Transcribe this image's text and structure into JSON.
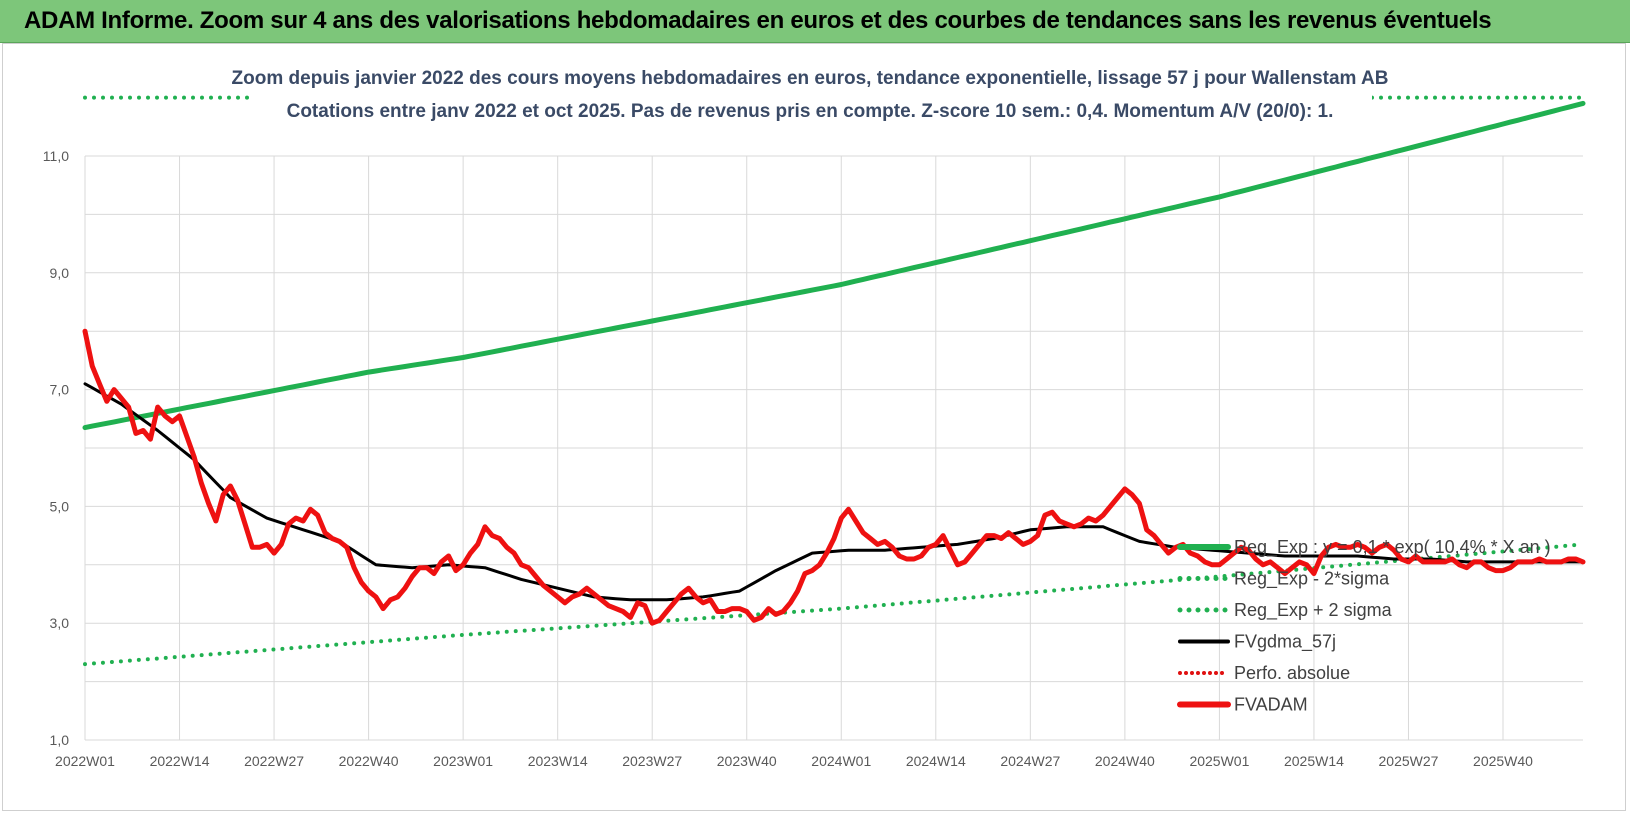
{
  "header": {
    "title": "ADAM Informe. Zoom sur 4 ans des valorisations hebdomadaires en euros et des courbes de tendances sans les revenus éventuels",
    "background": "#7dc67a"
  },
  "chart_data": {
    "type": "line",
    "title_lines": [
      "Zoom depuis janvier 2022 des cours moyens hebdomadaires en euros, tendance exponentielle, lissage 57 j pour Wallenstam AB",
      "Cotations entre janv 2022 et oct 2025. Pas de revenus pris en compte. Z-score 10 sem.: 0,4. Momentum A/V (20/0): 1."
    ],
    "xlabel": "",
    "ylabel": "",
    "ylim": [
      1.0,
      12.0
    ],
    "y_ticks": [
      "1,0",
      "3,0",
      "5,0",
      "7,0",
      "9,0",
      "11,0"
    ],
    "x_ticks": [
      "2022W01",
      "2022W14",
      "2022W27",
      "2022W40",
      "2023W01",
      "2023W14",
      "2023W27",
      "2023W40",
      "2024W01",
      "2024W14",
      "2024W27",
      "2024W40",
      "2025W01",
      "2025W14",
      "2025W27",
      "2025W40"
    ],
    "grid": true,
    "legend_position": "bottom-right",
    "series": [
      {
        "name": "Reg_Exp : y = 0,1 * exp( 10,4% * X  an )",
        "color": "#20b050",
        "style": "solid",
        "anchors": [
          [
            0,
            6.35
          ],
          [
            39,
            7.3
          ],
          [
            52,
            7.55
          ],
          [
            104,
            8.8
          ],
          [
            156,
            10.3
          ],
          [
            206,
            11.9
          ]
        ]
      },
      {
        "name": "Reg_Exp - 2*sigma",
        "color": "#20b050",
        "style": "dotted",
        "anchors": [
          [
            0,
            2.3
          ],
          [
            52,
            2.8
          ],
          [
            104,
            3.25
          ],
          [
            156,
            3.8
          ],
          [
            206,
            4.35
          ]
        ]
      },
      {
        "name": "Reg_Exp + 2 sigma",
        "color": "#20b050",
        "style": "dotted",
        "anchors": [
          [
            0,
            12.0
          ],
          [
            206,
            12.0
          ]
        ]
      },
      {
        "name": "FVgdma_57j",
        "color": "#000000",
        "style": "solid",
        "anchors": [
          [
            0,
            7.1
          ],
          [
            5,
            6.75
          ],
          [
            10,
            6.3
          ],
          [
            15,
            5.8
          ],
          [
            20,
            5.15
          ],
          [
            25,
            4.8
          ],
          [
            30,
            4.6
          ],
          [
            35,
            4.4
          ],
          [
            40,
            4.0
          ],
          [
            45,
            3.95
          ],
          [
            50,
            4.0
          ],
          [
            55,
            3.95
          ],
          [
            60,
            3.75
          ],
          [
            65,
            3.6
          ],
          [
            70,
            3.45
          ],
          [
            75,
            3.4
          ],
          [
            80,
            3.4
          ],
          [
            85,
            3.45
          ],
          [
            90,
            3.55
          ],
          [
            95,
            3.9
          ],
          [
            100,
            4.2
          ],
          [
            105,
            4.25
          ],
          [
            110,
            4.25
          ],
          [
            115,
            4.3
          ],
          [
            120,
            4.35
          ],
          [
            125,
            4.45
          ],
          [
            130,
            4.6
          ],
          [
            135,
            4.65
          ],
          [
            140,
            4.65
          ],
          [
            145,
            4.4
          ],
          [
            150,
            4.3
          ],
          [
            155,
            4.25
          ],
          [
            160,
            4.2
          ],
          [
            165,
            4.15
          ],
          [
            170,
            4.15
          ],
          [
            175,
            4.15
          ],
          [
            180,
            4.1
          ],
          [
            185,
            4.1
          ],
          [
            190,
            4.05
          ],
          [
            195,
            4.05
          ],
          [
            200,
            4.05
          ],
          [
            206,
            4.05
          ]
        ]
      },
      {
        "name": "Perfo. absolue",
        "color": "#e01010",
        "style": "dotted",
        "anchors": []
      },
      {
        "name": "FVADAM",
        "color": "#ee1111",
        "style": "solid",
        "anchors": [
          [
            0,
            8.0
          ],
          [
            1,
            7.4
          ],
          [
            2,
            7.1
          ],
          [
            3,
            6.8
          ],
          [
            4,
            7.0
          ],
          [
            5,
            6.85
          ],
          [
            6,
            6.7
          ],
          [
            7,
            6.25
          ],
          [
            8,
            6.3
          ],
          [
            9,
            6.15
          ],
          [
            10,
            6.7
          ],
          [
            11,
            6.55
          ],
          [
            12,
            6.45
          ],
          [
            13,
            6.55
          ],
          [
            14,
            6.2
          ],
          [
            15,
            5.85
          ],
          [
            16,
            5.4
          ],
          [
            17,
            5.05
          ],
          [
            18,
            4.75
          ],
          [
            19,
            5.2
          ],
          [
            20,
            5.35
          ],
          [
            21,
            5.1
          ],
          [
            22,
            4.7
          ],
          [
            23,
            4.3
          ],
          [
            24,
            4.3
          ],
          [
            25,
            4.35
          ],
          [
            26,
            4.2
          ],
          [
            27,
            4.35
          ],
          [
            28,
            4.7
          ],
          [
            29,
            4.8
          ],
          [
            30,
            4.75
          ],
          [
            31,
            4.95
          ],
          [
            32,
            4.85
          ],
          [
            33,
            4.55
          ],
          [
            34,
            4.45
          ],
          [
            35,
            4.4
          ],
          [
            36,
            4.3
          ],
          [
            37,
            3.95
          ],
          [
            38,
            3.7
          ],
          [
            39,
            3.55
          ],
          [
            40,
            3.45
          ],
          [
            41,
            3.25
          ],
          [
            42,
            3.4
          ],
          [
            43,
            3.45
          ],
          [
            44,
            3.6
          ],
          [
            45,
            3.8
          ],
          [
            46,
            3.95
          ],
          [
            47,
            3.95
          ],
          [
            48,
            3.85
          ],
          [
            49,
            4.05
          ],
          [
            50,
            4.15
          ],
          [
            51,
            3.9
          ],
          [
            52,
            4.0
          ],
          [
            53,
            4.2
          ],
          [
            54,
            4.35
          ],
          [
            55,
            4.65
          ],
          [
            56,
            4.5
          ],
          [
            57,
            4.45
          ],
          [
            58,
            4.3
          ],
          [
            59,
            4.2
          ],
          [
            60,
            4.0
          ],
          [
            61,
            3.95
          ],
          [
            62,
            3.8
          ],
          [
            63,
            3.65
          ],
          [
            64,
            3.55
          ],
          [
            65,
            3.45
          ],
          [
            66,
            3.35
          ],
          [
            67,
            3.45
          ],
          [
            68,
            3.5
          ],
          [
            69,
            3.6
          ],
          [
            70,
            3.5
          ],
          [
            71,
            3.4
          ],
          [
            72,
            3.3
          ],
          [
            73,
            3.25
          ],
          [
            74,
            3.2
          ],
          [
            75,
            3.1
          ],
          [
            76,
            3.35
          ],
          [
            77,
            3.3
          ],
          [
            78,
            3.0
          ],
          [
            79,
            3.05
          ],
          [
            80,
            3.2
          ],
          [
            81,
            3.35
          ],
          [
            82,
            3.5
          ],
          [
            83,
            3.6
          ],
          [
            84,
            3.45
          ],
          [
            85,
            3.35
          ],
          [
            86,
            3.4
          ],
          [
            87,
            3.2
          ],
          [
            88,
            3.2
          ],
          [
            89,
            3.25
          ],
          [
            90,
            3.25
          ],
          [
            91,
            3.2
          ],
          [
            92,
            3.05
          ],
          [
            93,
            3.1
          ],
          [
            94,
            3.25
          ],
          [
            95,
            3.15
          ],
          [
            96,
            3.2
          ],
          [
            97,
            3.35
          ],
          [
            98,
            3.55
          ],
          [
            99,
            3.85
          ],
          [
            100,
            3.9
          ],
          [
            101,
            4.0
          ],
          [
            102,
            4.2
          ],
          [
            103,
            4.45
          ],
          [
            104,
            4.8
          ],
          [
            105,
            4.95
          ],
          [
            106,
            4.75
          ],
          [
            107,
            4.55
          ],
          [
            108,
            4.45
          ],
          [
            109,
            4.35
          ],
          [
            110,
            4.4
          ],
          [
            111,
            4.3
          ],
          [
            112,
            4.15
          ],
          [
            113,
            4.1
          ],
          [
            114,
            4.1
          ],
          [
            115,
            4.15
          ],
          [
            116,
            4.3
          ],
          [
            117,
            4.35
          ],
          [
            118,
            4.5
          ],
          [
            119,
            4.25
          ],
          [
            120,
            4.0
          ],
          [
            121,
            4.05
          ],
          [
            122,
            4.2
          ],
          [
            123,
            4.35
          ],
          [
            124,
            4.5
          ],
          [
            125,
            4.5
          ],
          [
            126,
            4.45
          ],
          [
            127,
            4.55
          ],
          [
            128,
            4.45
          ],
          [
            129,
            4.35
          ],
          [
            130,
            4.4
          ],
          [
            131,
            4.5
          ],
          [
            132,
            4.85
          ],
          [
            133,
            4.9
          ],
          [
            134,
            4.75
          ],
          [
            135,
            4.7
          ],
          [
            136,
            4.65
          ],
          [
            137,
            4.7
          ],
          [
            138,
            4.8
          ],
          [
            139,
            4.75
          ],
          [
            140,
            4.85
          ],
          [
            141,
            5.0
          ],
          [
            142,
            5.15
          ],
          [
            143,
            5.3
          ],
          [
            144,
            5.2
          ],
          [
            145,
            5.05
          ],
          [
            146,
            4.6
          ],
          [
            147,
            4.5
          ],
          [
            148,
            4.35
          ],
          [
            149,
            4.2
          ],
          [
            150,
            4.3
          ],
          [
            151,
            4.35
          ],
          [
            152,
            4.2
          ],
          [
            153,
            4.15
          ],
          [
            154,
            4.05
          ],
          [
            155,
            4.0
          ],
          [
            156,
            4.0
          ],
          [
            157,
            4.1
          ],
          [
            158,
            4.2
          ],
          [
            159,
            4.3
          ],
          [
            160,
            4.25
          ],
          [
            161,
            4.1
          ],
          [
            162,
            4.0
          ],
          [
            163,
            4.05
          ],
          [
            164,
            3.95
          ],
          [
            165,
            3.85
          ],
          [
            166,
            3.95
          ],
          [
            167,
            4.05
          ],
          [
            168,
            4.0
          ],
          [
            169,
            3.85
          ],
          [
            170,
            4.15
          ],
          [
            171,
            4.3
          ],
          [
            172,
            4.35
          ],
          [
            173,
            4.3
          ],
          [
            174,
            4.3
          ],
          [
            175,
            4.35
          ],
          [
            176,
            4.3
          ],
          [
            177,
            4.2
          ],
          [
            178,
            4.3
          ],
          [
            179,
            4.35
          ],
          [
            180,
            4.25
          ],
          [
            181,
            4.1
          ],
          [
            182,
            4.05
          ],
          [
            183,
            4.15
          ],
          [
            184,
            4.05
          ],
          [
            185,
            4.05
          ],
          [
            186,
            4.05
          ],
          [
            187,
            4.05
          ],
          [
            188,
            4.1
          ],
          [
            189,
            4.0
          ],
          [
            190,
            3.95
          ],
          [
            191,
            4.05
          ],
          [
            192,
            4.05
          ],
          [
            193,
            3.95
          ],
          [
            194,
            3.9
          ],
          [
            195,
            3.9
          ],
          [
            196,
            3.95
          ],
          [
            197,
            4.05
          ],
          [
            198,
            4.05
          ],
          [
            199,
            4.05
          ],
          [
            200,
            4.1
          ],
          [
            201,
            4.05
          ],
          [
            202,
            4.05
          ],
          [
            203,
            4.05
          ],
          [
            204,
            4.1
          ],
          [
            205,
            4.1
          ],
          [
            206,
            4.05
          ]
        ]
      }
    ]
  }
}
